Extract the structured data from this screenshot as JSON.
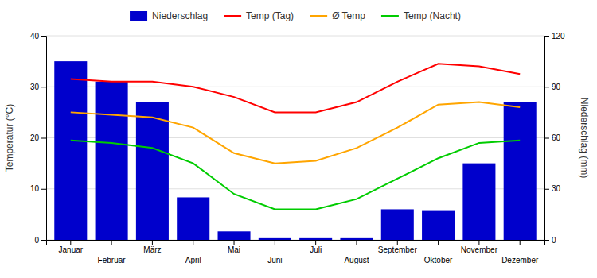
{
  "chart_data": {
    "type": "bar",
    "categories": [
      "Januar",
      "Februar",
      "März",
      "April",
      "Mai",
      "Juni",
      "Juli",
      "August",
      "September",
      "Oktober",
      "November",
      "Dezember"
    ],
    "series": [
      {
        "name": "Niederschlag",
        "type": "bar",
        "axis": "y2",
        "color": "#0000cc",
        "values": [
          105,
          93,
          81,
          25,
          5,
          1,
          1,
          1,
          18,
          17,
          45,
          81
        ]
      },
      {
        "name": "Temp (Tag)",
        "type": "line",
        "color": "#ff0000",
        "values": [
          31.5,
          31,
          31,
          30,
          28,
          25,
          25,
          27,
          31,
          34.5,
          34,
          32.5
        ]
      },
      {
        "name": "Ø Temp",
        "type": "line",
        "color": "#ffa500",
        "values": [
          25,
          24.5,
          24,
          22,
          17,
          15,
          15.5,
          18,
          22,
          26.5,
          27,
          26
        ]
      },
      {
        "name": "Temp (Nacht)",
        "type": "line",
        "color": "#00cc00",
        "values": [
          19.5,
          19,
          18,
          15,
          9,
          6,
          6,
          8,
          12,
          16,
          19,
          19.5
        ]
      }
    ],
    "y_label": "Temperatur (°C)",
    "y2_label": "Niederschlag (mm)",
    "ylim": [
      0,
      40
    ],
    "yticks": [
      0,
      10,
      20,
      30,
      40
    ],
    "y2lim": [
      0,
      120
    ],
    "y2ticks": [
      0,
      30,
      60,
      90,
      120
    ],
    "grid": true,
    "legend": "top"
  }
}
